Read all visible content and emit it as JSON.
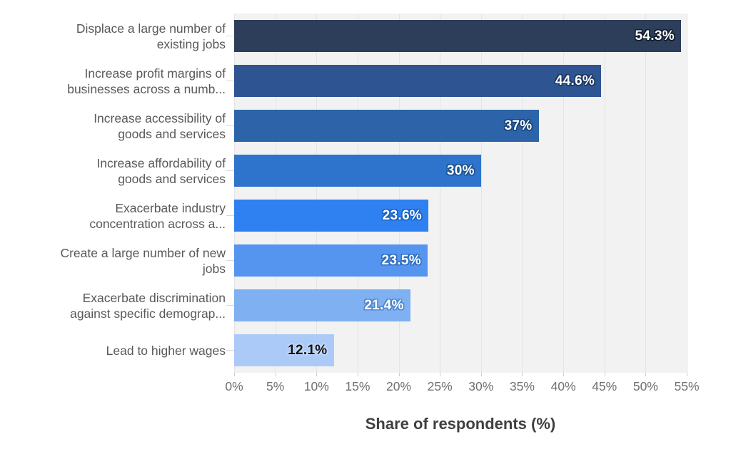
{
  "chart_data": {
    "type": "bar",
    "orientation": "horizontal",
    "xlabel": "Share of respondents (%)",
    "xlim": [
      0,
      55
    ],
    "x_tick_step": 5,
    "x_ticks": [
      "0%",
      "5%",
      "10%",
      "15%",
      "20%",
      "25%",
      "30%",
      "35%",
      "40%",
      "45%",
      "50%",
      "55%"
    ],
    "grid": "vertical",
    "legend": "none",
    "categories": [
      "Displace a large number of\nexisting jobs",
      "Increase profit margins of\nbusinesses across a numb...",
      "Increase accessibility of\ngoods and services",
      "Increase affordability of\ngoods and services",
      "Exacerbate industry\nconcentration across a...",
      "Create a large number of new\njobs",
      "Exacerbate discrimination\nagainst specific demograp...",
      "Lead to higher wages"
    ],
    "values": [
      54.3,
      44.6,
      37,
      30,
      23.6,
      23.5,
      21.4,
      12.1
    ],
    "value_labels": [
      "54.3%",
      "44.6%",
      "37%",
      "30%",
      "23.6%",
      "23.5%",
      "21.4%",
      "12.1%"
    ],
    "bar_colors": [
      "#2c3e59",
      "#2e5492",
      "#2c63a9",
      "#2e73cc",
      "#2f80f0",
      "#5595f0",
      "#7fb0f2",
      "#abcaf7"
    ],
    "value_text_colors": [
      "#ffffff",
      "#ffffff",
      "#ffffff",
      "#ffffff",
      "#ffffff",
      "#ffffff",
      "#ffffff",
      "#111111"
    ],
    "value_halo_colors": [
      "#121f33",
      "#1b3james",
      "#1a4578",
      "#1c5496",
      "#1a63c4",
      "#2f6fc4",
      "#4f88d0",
      "#c3daf9"
    ],
    "plot_bg_color": "#f2f2f2",
    "grid_color": "#e4e4e4"
  }
}
